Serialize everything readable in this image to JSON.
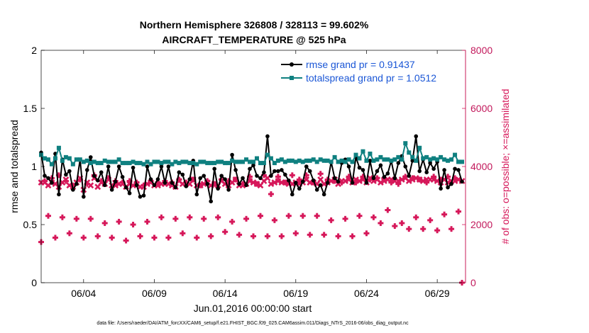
{
  "chart_data": {
    "type": "line",
    "title": "Northern Hemisphere 326808 / 328113 = 99.602%",
    "subtitle": "AIRCRAFT_TEMPERATURE @ 525 hPa",
    "xlabel": "Jun.01,2016 00:00:00 start",
    "ylabel_left": "rmse and totalspread",
    "ylabel_right": "# of obs: o=possible; ×=assimilated",
    "footer": "data file: /Users/raeder/DAI/ATM_forcXX/CAM6_setup/f.e21.FHIST_BGC.f09_025.CAM6assim.011/Diags_NTrS_2016-06/obs_diag_output.nc",
    "x_unit": "days since Jun.01,2016 00:00",
    "xlim": [
      0,
      30
    ],
    "x_ticks": [
      3,
      8,
      13,
      18,
      23,
      28
    ],
    "x_tick_labels": [
      "06/04",
      "06/09",
      "06/14",
      "06/19",
      "06/24",
      "06/29"
    ],
    "ylim_left": [
      0,
      2
    ],
    "y_ticks_left": [
      "0",
      "0.5",
      "1",
      "1.5",
      "2"
    ],
    "ylim_right": [
      0,
      8000
    ],
    "y_ticks_right": [
      "0",
      "2000",
      "4000",
      "6000",
      "8000"
    ],
    "legend": [
      "rmse grand pr = 0.91437",
      "totalspread grand pr = 1.0512"
    ],
    "colors": {
      "rmse": "#000000",
      "totalspread": "#0f8080",
      "obs": "#d6185a",
      "right_axis": "#d6185a",
      "legend_text": "#1a56d6"
    },
    "x": [
      0.0,
      0.25,
      0.5,
      0.75,
      1.0,
      1.25,
      1.5,
      1.75,
      2.0,
      2.25,
      2.5,
      2.75,
      3.0,
      3.25,
      3.5,
      3.75,
      4.0,
      4.25,
      4.5,
      4.75,
      5.0,
      5.25,
      5.5,
      5.75,
      6.0,
      6.25,
      6.5,
      6.75,
      7.0,
      7.25,
      7.5,
      7.75,
      8.0,
      8.25,
      8.5,
      8.75,
      9.0,
      9.25,
      9.5,
      9.75,
      10.0,
      10.25,
      10.5,
      10.75,
      11.0,
      11.25,
      11.5,
      11.75,
      12.0,
      12.25,
      12.5,
      12.75,
      13.0,
      13.25,
      13.5,
      13.75,
      14.0,
      14.25,
      14.5,
      14.75,
      15.0,
      15.25,
      15.5,
      15.75,
      16.0,
      16.25,
      16.5,
      16.75,
      17.0,
      17.25,
      17.5,
      17.75,
      18.0,
      18.25,
      18.5,
      18.75,
      19.0,
      19.25,
      19.5,
      19.75,
      20.0,
      20.25,
      20.5,
      20.75,
      21.0,
      21.25,
      21.5,
      21.75,
      22.0,
      22.25,
      22.5,
      22.75,
      23.0,
      23.25,
      23.5,
      23.75,
      24.0,
      24.25,
      24.5,
      24.75,
      25.0,
      25.25,
      25.5,
      25.75,
      26.0,
      26.25,
      26.5,
      26.75,
      27.0,
      27.25,
      27.5,
      27.75,
      28.0,
      28.25,
      28.5,
      28.75,
      29.0,
      29.25,
      29.5,
      29.75
    ],
    "series": [
      {
        "name": "rmse",
        "marker": "dot",
        "values": [
          1.12,
          0.92,
          0.9,
          0.86,
          1.11,
          0.76,
          1.06,
          0.93,
          0.96,
          0.8,
          0.85,
          1.06,
          0.74,
          0.97,
          1.08,
          0.92,
          0.88,
          0.95,
          0.84,
          1.0,
          0.8,
          0.87,
          1.0,
          0.91,
          0.82,
          0.77,
          0.99,
          0.84,
          0.74,
          0.75,
          1.0,
          0.89,
          0.84,
          0.89,
          1.0,
          0.86,
          1.0,
          0.86,
          0.82,
          0.95,
          0.93,
          0.83,
          0.89,
          1.05,
          0.76,
          0.9,
          0.92,
          0.85,
          0.7,
          0.98,
          0.81,
          0.92,
          0.89,
          0.8,
          1.1,
          0.97,
          0.85,
          0.9,
          0.84,
          0.98,
          1.01,
          0.92,
          0.9,
          0.95,
          1.26,
          0.92,
          0.96,
          0.96,
          0.97,
          0.93,
          0.88,
          0.76,
          0.86,
          0.81,
          0.87,
          1.0,
          0.96,
          0.88,
          0.8,
          0.84,
          0.76,
          0.86,
          1.04,
          0.9,
          0.87,
          1.03,
          1.06,
          1.0,
          0.86,
          1.08,
          0.99,
          0.97,
          0.86,
          1.05,
          0.9,
          0.96,
          1.01,
          0.91,
          0.94,
          1.05,
          0.9,
          1.03,
          1.09,
          1.0,
          0.92,
          1.05,
          1.26,
          0.96,
          1.06,
          0.95,
          1.03,
          0.98,
          1.04,
          0.81,
          0.97,
          0.82,
          0.85,
          0.98,
          0.97,
          0.87
        ]
      },
      {
        "name": "totalspread",
        "marker": "square",
        "values": [
          1.1,
          1.07,
          1.06,
          1.02,
          1.07,
          1.16,
          1.05,
          1.08,
          1.07,
          1.02,
          1.06,
          1.06,
          1.04,
          1.05,
          1.03,
          1.04,
          1.03,
          1.03,
          1.05,
          1.04,
          1.04,
          1.04,
          1.06,
          1.03,
          1.03,
          1.03,
          1.04,
          1.03,
          1.03,
          1.02,
          1.04,
          1.02,
          1.04,
          1.04,
          1.03,
          1.04,
          1.04,
          1.02,
          1.04,
          1.03,
          1.04,
          1.04,
          1.03,
          1.03,
          1.02,
          1.04,
          1.04,
          1.03,
          1.03,
          1.03,
          1.04,
          1.04,
          1.03,
          1.03,
          1.05,
          1.04,
          1.04,
          1.04,
          1.06,
          1.04,
          1.04,
          1.07,
          1.03,
          1.03,
          1.1,
          1.07,
          1.03,
          1.05,
          1.06,
          1.04,
          1.05,
          1.05,
          1.04,
          1.05,
          1.04,
          1.05,
          1.05,
          1.06,
          1.04,
          1.06,
          1.05,
          1.05,
          1.04,
          1.08,
          1.04,
          1.05,
          1.04,
          1.06,
          1.04,
          1.1,
          1.07,
          1.13,
          1.05,
          1.11,
          1.05,
          1.06,
          1.08,
          1.06,
          1.06,
          1.05,
          1.06,
          1.08,
          1.06,
          1.2,
          1.12,
          1.08,
          1.05,
          1.16,
          1.07,
          1.08,
          1.06,
          1.07,
          1.06,
          1.08,
          1.06,
          1.05,
          1.06,
          1.1,
          1.04,
          1.04
        ]
      }
    ],
    "obs_possible": [
      1400,
      3500,
      2300,
      3600,
      1550,
      3700,
      2250,
      3500,
      1700,
      3350,
      2200,
      3550,
      1550,
      3400,
      2200,
      3700,
      1600,
      3500,
      2050,
      3600,
      1550,
      3500,
      2100,
      3450,
      1450,
      3500,
      2000,
      3450,
      1600,
      3350,
      2100,
      3500,
      1550,
      3450,
      2250,
      3500,
      1550,
      3450,
      2200,
      3550,
      1700,
      3450,
      2250,
      3550,
      1550,
      3350,
      2200,
      3500,
      1600,
      3400,
      2250,
      3550,
      1750,
      3500,
      2100,
      3550,
      1650,
      3400,
      2200,
      3650,
      1600,
      3400,
      2300,
      3700,
      1600,
      3050,
      2150,
      3650,
      1600,
      3450,
      2300,
      3700,
      1700,
      3550,
      2300,
      3700,
      1650,
      3450,
      2300,
      3750,
      1650,
      3550,
      2150,
      3500,
      1600,
      3450,
      2200,
      3650,
      1600,
      3450,
      2300,
      3650,
      1700,
      3550,
      2250,
      3600,
      2050,
      3600,
      2500,
      3450,
      1950,
      3400,
      2050,
      3650,
      1850,
      3600,
      2250,
      3550,
      1850,
      3450,
      2150,
      3650,
      1800,
      3550,
      2350,
      3650,
      1850,
      3600,
      2450,
      0
    ],
    "obs_assimilated": [
      3450,
      3450,
      3350,
      3450,
      3400,
      3300,
      3450,
      3550,
      3350,
      3300,
      3450,
      3600,
      3200,
      3450,
      3350,
      3600,
      3300,
      3450,
      3400,
      3550,
      3350,
      3350,
      3400,
      3400,
      3300,
      3400,
      3350,
      3400,
      3300,
      3300,
      3400,
      3450,
      3350,
      3350,
      3400,
      3400,
      3400,
      3350,
      3300,
      3500,
      3400,
      3400,
      3400,
      3550,
      3350,
      3350,
      3400,
      3450,
      3350,
      3400,
      3350,
      3500,
      3400,
      3350,
      3450,
      3550,
      3350,
      3350,
      3400,
      3500,
      3450,
      3400,
      3350,
      3500,
      3600,
      3400,
      3450,
      3500,
      3450,
      3450,
      3400,
      3400,
      3450,
      3400,
      3450,
      3550,
      3450,
      3450,
      3400,
      3550,
      3400,
      3450,
      3500,
      3550,
      3400,
      3500,
      3500,
      3550,
      3450,
      3550,
      3500,
      3550,
      3450,
      3600,
      3500,
      3550,
      3450,
      3500,
      3550,
      3550,
      3500,
      3500,
      3550,
      3600,
      3500,
      3550,
      3600,
      3550,
      3500,
      3550,
      3550,
      3550,
      3500,
      3450,
      3550,
      3450,
      3500,
      3500,
      3550,
      3500
    ]
  }
}
